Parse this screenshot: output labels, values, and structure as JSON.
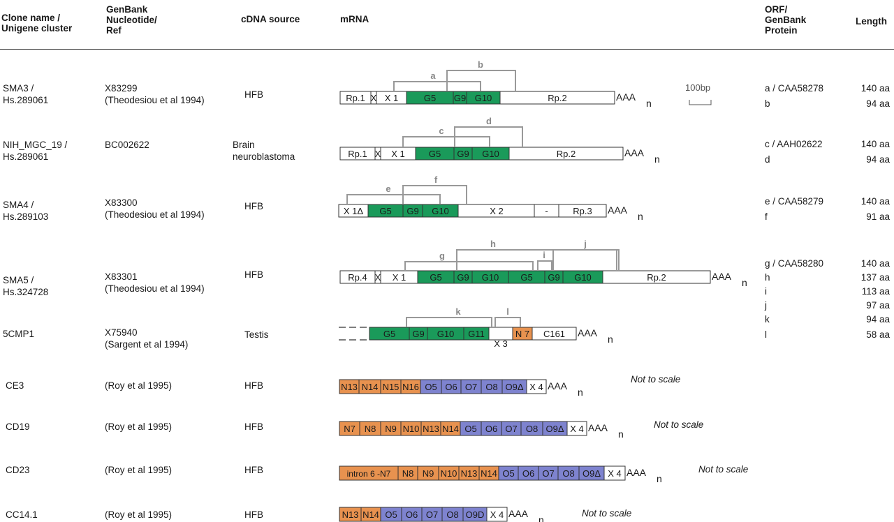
{
  "header": {
    "col_clone": "Clone name /\nUnigene cluster",
    "col_genbank": "GenBank\nNucleotide/\nRef",
    "col_source": "cDNA source",
    "col_mrna": "mRNA",
    "col_orf": "ORF/\nGenBank\nProtein",
    "col_length": "Length"
  },
  "colors": {
    "green": "#1a9a5a",
    "orange": "#e8924f",
    "blue": "#7e83cf",
    "white": "#ffffff",
    "bracket": "#999999"
  },
  "scale_bar_label": "100bp",
  "poly_a": {
    "aaa": "AAA",
    "n": "n"
  },
  "rows": [
    {
      "clone": "SMA3 /\nHs.289061",
      "genbank": "X83299\n(Theodesiou et al 1994)",
      "source": "HFB",
      "orf": "a / CAA58278\nb",
      "length": "140 aa\n94 aa",
      "segments": [
        "Rp.1",
        "X",
        "X 1",
        "G5",
        "G9",
        "G10",
        "Rp.2"
      ],
      "brackets": [
        "a",
        "b"
      ]
    },
    {
      "clone": "NIH_MGC_19 /\nHs.289061",
      "genbank": "BC002622",
      "source": "Brain\nneuroblastoma",
      "orf": "c / AAH02622\nd",
      "length": "140 aa\n94 aa",
      "segments": [
        "Rp.1",
        "X",
        "X 1",
        "G5",
        "G9",
        "G10",
        "Rp.2"
      ],
      "brackets": [
        "c",
        "d"
      ]
    },
    {
      "clone": "SMA4 /\nHs.289103",
      "genbank": "X83300\n(Theodesiou et al 1994)",
      "source": "HFB",
      "orf": "e / CAA58279\nf",
      "length": "140 aa\n91 aa",
      "segments": [
        "X 1Δ",
        "G5",
        "G9",
        "G10",
        "X 2",
        "-",
        "Rp.3"
      ],
      "brackets": [
        "e",
        "f"
      ]
    },
    {
      "clone": "SMA5 /\nHs.324728",
      "genbank": "X83301\n(Theodesiou et al 1994)",
      "source": "HFB",
      "orf": "g / CAA58280\nh\ni\nj",
      "length": "140 aa\n137 aa\n113 aa\n97 aa",
      "segments": [
        "Rp.4",
        "X",
        "X 1",
        "G5",
        "G9",
        "G10",
        "G5",
        "G9",
        "G10",
        "Rp.2"
      ],
      "brackets": [
        "g",
        "h",
        "i",
        "j"
      ]
    },
    {
      "clone": "5CMP1",
      "genbank": "X75940\n(Sargent et al 1994)",
      "source": "Testis",
      "orf": "k\nl",
      "length": "94 aa\n58 aa",
      "segments": [
        "G5",
        "G9",
        "G10",
        "G11",
        "X 3",
        "N 7",
        "C161"
      ],
      "brackets": [
        "k",
        "l"
      ]
    },
    {
      "clone": "CE3",
      "genbank": "(Roy et al 1995)",
      "source": "HFB",
      "orf": "",
      "length": "",
      "note": "Not to scale",
      "segments": [
        "N13",
        "N14",
        "N15",
        "N16",
        "O5",
        "O6",
        "O7",
        "O8",
        "O9Δ",
        "X 4"
      ]
    },
    {
      "clone": "CD19",
      "genbank": "(Roy et al 1995)",
      "source": "HFB",
      "orf": "",
      "length": "",
      "note": "Not to scale",
      "segments": [
        "N7",
        "N8",
        "N9",
        "N10",
        "N13",
        "N14",
        "O5",
        "O6",
        "O7",
        "O8",
        "O9Δ",
        "X 4"
      ]
    },
    {
      "clone": "CD23",
      "genbank": "(Roy et al 1995)",
      "source": "HFB",
      "orf": "",
      "length": "",
      "note": "Not to scale",
      "segments": [
        "intron 6 -N7",
        "N8",
        "N9",
        "N10",
        "N13",
        "N14",
        "O5",
        "O6",
        "O7",
        "O8",
        "O9Δ",
        "X 4"
      ]
    },
    {
      "clone": "CC14.1",
      "genbank": "(Roy et al 1995)",
      "source": "HFB",
      "orf": "",
      "length": "",
      "note": "Not to scale",
      "segments": [
        "N13",
        "N14",
        "O5",
        "O6",
        "O7",
        "O8",
        "O9D",
        "X 4"
      ]
    }
  ]
}
